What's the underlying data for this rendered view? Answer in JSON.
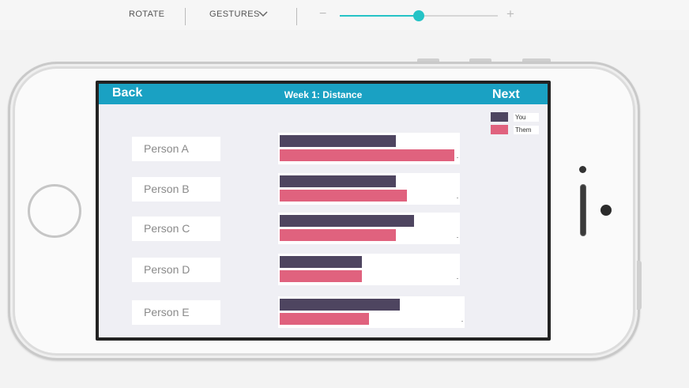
{
  "toolbar": {
    "rotate_label": "ROTATE",
    "gestures_label": "GESTURES",
    "zoom_minus": "−",
    "zoom_plus": "+",
    "zoom_fraction": 0.5,
    "accent_color": "#25c3c6"
  },
  "app": {
    "back_label": "Back",
    "title": "Week 1: Distance",
    "next_label": "Next",
    "header_color": "#1aa1c3"
  },
  "legend": [
    {
      "label": "You",
      "color": "#4e4560"
    },
    {
      "label": "Them",
      "color": "#e0627e"
    }
  ],
  "chart_data": {
    "type": "bar",
    "categories": [
      "Person A",
      "Person B",
      "Person C",
      "Person D",
      "Person E"
    ],
    "series": [
      {
        "name": "You",
        "values": [
          0.64,
          0.64,
          0.74,
          0.45,
          0.66
        ]
      },
      {
        "name": "Them",
        "values": [
          0.96,
          0.7,
          0.64,
          0.45,
          0.49
        ]
      }
    ],
    "xlabel": "",
    "ylabel": ""
  }
}
